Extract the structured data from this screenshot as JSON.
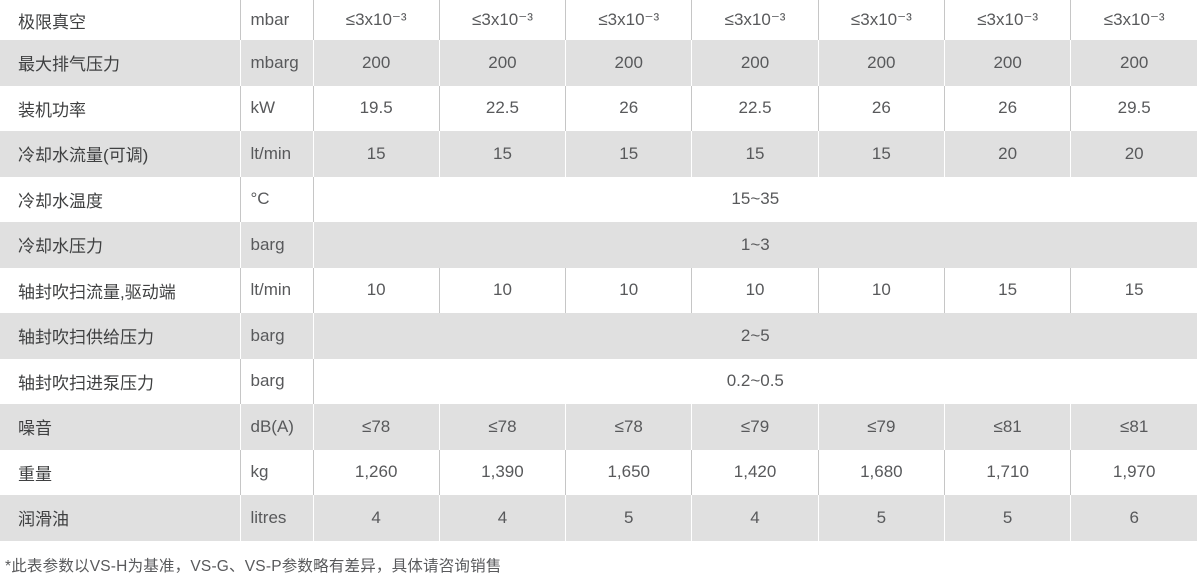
{
  "table": {
    "value_column_count": 7,
    "rows": [
      {
        "label": "极限真空",
        "unit": "mbar",
        "values": [
          "≤3x10⁻³",
          "≤3x10⁻³",
          "≤3x10⁻³",
          "≤3x10⁻³",
          "≤3x10⁻³",
          "≤3x10⁻³",
          "≤3x10⁻³"
        ]
      },
      {
        "label": "最大排气压力",
        "unit": "mbarg",
        "values": [
          "200",
          "200",
          "200",
          "200",
          "200",
          "200",
          "200"
        ]
      },
      {
        "label": "装机功率",
        "unit": "kW",
        "values": [
          "19.5",
          "22.5",
          "26",
          "22.5",
          "26",
          "26",
          "29.5"
        ]
      },
      {
        "label": "冷却水流量(可调)",
        "unit": "lt/min",
        "values": [
          "15",
          "15",
          "15",
          "15",
          "15",
          "20",
          "20"
        ]
      },
      {
        "label": "冷却水温度",
        "unit": "°C",
        "span_value": "15~35"
      },
      {
        "label": "冷却水压力",
        "unit": "barg",
        "span_value": "1~3"
      },
      {
        "label": "轴封吹扫流量,驱动端",
        "unit": "lt/min",
        "values": [
          "10",
          "10",
          "10",
          "10",
          "10",
          "15",
          "15"
        ]
      },
      {
        "label": "轴封吹扫供给压力",
        "unit": "barg",
        "span_value": "2~5"
      },
      {
        "label": "轴封吹扫进泵压力",
        "unit": "barg",
        "span_value": "0.2~0.5"
      },
      {
        "label": "噪音",
        "unit": "dB(A)",
        "values": [
          "≤78",
          "≤78",
          "≤78",
          "≤79",
          "≤79",
          "≤81",
          "≤81"
        ]
      },
      {
        "label": "重量",
        "unit": "kg",
        "values": [
          "1,260",
          "1,390",
          "1,650",
          "1,420",
          "1,680",
          "1,710",
          "1,970"
        ]
      },
      {
        "label": "润滑油",
        "unit": "litres",
        "values": [
          "4",
          "4",
          "5",
          "4",
          "5",
          "5",
          "6"
        ]
      }
    ]
  },
  "footnote": "*此表参数以VS-H为基准，VS-G、VS-P参数略有差异，具体请咨询销售",
  "colors": {
    "row_alt_bg": "#e0e0e0",
    "grid_line": "#c6c6c6",
    "label_text": "#3f4041",
    "value_text": "#58595b"
  }
}
